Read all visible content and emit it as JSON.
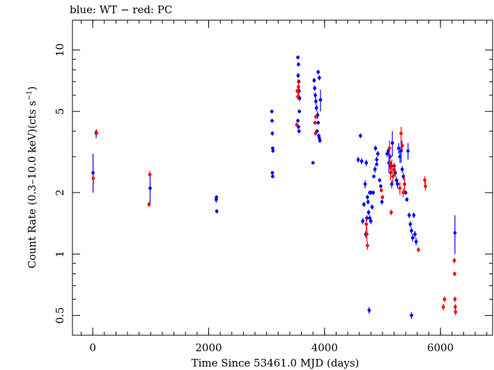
{
  "chart_data": {
    "type": "scatter",
    "title": "blue: WT − red: PC",
    "xlabel": "Time Since 53461.0 MJD (days)",
    "ylabel_main": "Count Rate (0.3–10.0 keV)(cts s",
    "ylabel_sup": "−1",
    "ylabel_end": ")",
    "x_ticks": [
      "0",
      "2000",
      "4000",
      "6000"
    ],
    "y_ticks": [
      "0.5",
      "1",
      "2",
      "5",
      "10"
    ],
    "xlim": [
      -350,
      6900
    ],
    "ylim": [
      0.4,
      14.0
    ],
    "yscale": "log",
    "grid": false,
    "series": [
      {
        "name": "WT",
        "color": "#0000ff",
        "points": [
          [
            5,
            2.5,
            2.0,
            3.1
          ],
          [
            60,
            3.9,
            3.7,
            4.1
          ],
          [
            990,
            2.1,
            1.75,
            2.5
          ],
          [
            2130,
            1.85,
            1.78,
            1.92
          ],
          [
            2140,
            1.62,
            1.58,
            1.66
          ],
          [
            2135,
            1.9,
            1.86,
            1.94
          ],
          [
            3090,
            5.0,
            4.9,
            5.1
          ],
          [
            3095,
            4.5,
            4.4,
            4.6
          ],
          [
            3100,
            3.9,
            3.8,
            4.0
          ],
          [
            3105,
            3.3,
            3.25,
            3.35
          ],
          [
            3110,
            3.2,
            3.15,
            3.25
          ],
          [
            3100,
            2.5,
            2.45,
            2.55
          ],
          [
            3105,
            2.4,
            2.35,
            2.45
          ],
          [
            3540,
            9.2,
            9.0,
            9.4
          ],
          [
            3550,
            8.5,
            8.3,
            8.7
          ],
          [
            3545,
            7.5,
            7.3,
            7.7
          ],
          [
            3555,
            7.0,
            6.8,
            7.2
          ],
          [
            3560,
            6.3,
            6.1,
            6.5
          ],
          [
            3570,
            5.8,
            5.6,
            6.0
          ],
          [
            3565,
            5.0,
            4.9,
            5.1
          ],
          [
            3540,
            4.5,
            4.4,
            4.6
          ],
          [
            3550,
            4.2,
            4.1,
            4.3
          ],
          [
            3560,
            4.0,
            3.9,
            4.1
          ],
          [
            3820,
            7.1,
            6.9,
            7.3
          ],
          [
            3830,
            6.5,
            6.3,
            6.7
          ],
          [
            3840,
            6.0,
            5.8,
            6.2
          ],
          [
            3850,
            5.6,
            5.4,
            5.8
          ],
          [
            3860,
            5.2,
            5.0,
            5.4
          ],
          [
            3880,
            4.8,
            4.6,
            5.0
          ],
          [
            3890,
            4.4,
            4.3,
            4.5
          ],
          [
            3870,
            4.0,
            3.9,
            4.1
          ],
          [
            3900,
            3.8,
            3.7,
            3.9
          ],
          [
            3910,
            3.7,
            3.6,
            3.8
          ],
          [
            3920,
            3.6,
            3.5,
            3.7
          ],
          [
            3930,
            5.7,
            5.0,
            6.4
          ],
          [
            3890,
            7.8,
            7.6,
            8.0
          ],
          [
            3910,
            7.3,
            7.1,
            7.5
          ],
          [
            3800,
            2.8,
            2.75,
            2.85
          ],
          [
            4580,
            2.9,
            2.8,
            3.0
          ],
          [
            4620,
            3.8,
            3.7,
            3.9
          ],
          [
            4640,
            2.85,
            2.75,
            2.95
          ],
          [
            4660,
            1.45,
            1.4,
            1.5
          ],
          [
            4680,
            1.75,
            1.7,
            1.8
          ],
          [
            4700,
            2.2,
            2.1,
            2.3
          ],
          [
            4720,
            2.8,
            2.7,
            2.9
          ],
          [
            4740,
            1.9,
            1.85,
            1.95
          ],
          [
            4760,
            1.6,
            1.55,
            1.65
          ],
          [
            4780,
            1.5,
            1.45,
            1.55
          ],
          [
            4800,
            1.45,
            1.4,
            1.5
          ],
          [
            4820,
            1.7,
            1.65,
            1.75
          ],
          [
            4840,
            2.0,
            1.95,
            2.05
          ],
          [
            4710,
            1.25,
            1.2,
            1.3
          ],
          [
            4730,
            1.5,
            1.45,
            1.55
          ],
          [
            4750,
            1.8,
            1.75,
            1.85
          ],
          [
            4780,
            2.0,
            1.95,
            2.05
          ],
          [
            4800,
            2.0,
            1.95,
            2.05
          ],
          [
            4850,
            2.4,
            2.35,
            2.45
          ],
          [
            4870,
            2.6,
            2.5,
            2.7
          ],
          [
            4900,
            2.75,
            2.7,
            2.8
          ],
          [
            4920,
            3.1,
            3.0,
            3.2
          ],
          [
            4950,
            2.3,
            2.25,
            2.35
          ],
          [
            4970,
            2.15,
            2.1,
            2.2
          ],
          [
            4990,
            1.8,
            1.75,
            1.85
          ],
          [
            4770,
            0.53,
            0.51,
            0.55
          ],
          [
            4880,
            3.3,
            3.2,
            3.4
          ],
          [
            4900,
            2.9,
            2.8,
            3.0
          ],
          [
            5080,
            3.1,
            3.0,
            3.2
          ],
          [
            5100,
            3.2,
            3.1,
            3.3
          ],
          [
            5110,
            2.8,
            2.5,
            3.1
          ],
          [
            5130,
            3.0,
            2.9,
            3.1
          ],
          [
            5140,
            2.7,
            2.6,
            2.8
          ],
          [
            5160,
            2.2,
            2.1,
            2.3
          ],
          [
            5170,
            3.5,
            3.0,
            4.0
          ],
          [
            5200,
            2.7,
            2.6,
            2.8
          ],
          [
            5220,
            2.5,
            2.4,
            2.6
          ],
          [
            5240,
            2.3,
            2.2,
            2.4
          ],
          [
            5260,
            2.2,
            2.1,
            2.3
          ],
          [
            5280,
            3.3,
            3.1,
            3.5
          ],
          [
            5300,
            3.0,
            2.8,
            3.2
          ],
          [
            5320,
            3.2,
            2.8,
            3.6
          ],
          [
            5340,
            2.6,
            2.5,
            2.7
          ],
          [
            5360,
            2.4,
            2.3,
            2.5
          ],
          [
            5380,
            2.2,
            2.1,
            2.3
          ],
          [
            5400,
            2.0,
            1.95,
            2.05
          ],
          [
            5420,
            1.85,
            1.8,
            1.9
          ],
          [
            5440,
            3.2,
            2.9,
            3.5
          ],
          [
            5460,
            1.55,
            1.5,
            1.6
          ],
          [
            5480,
            1.4,
            1.35,
            1.45
          ],
          [
            5500,
            1.3,
            1.25,
            1.35
          ],
          [
            5520,
            1.2,
            1.15,
            1.25
          ],
          [
            5540,
            1.55,
            1.5,
            1.6
          ],
          [
            5500,
            0.5,
            0.48,
            0.52
          ],
          [
            5560,
            1.25,
            1.2,
            1.3
          ],
          [
            5580,
            1.15,
            1.1,
            1.2
          ],
          [
            6250,
            1.27,
            1.0,
            1.55
          ]
        ]
      },
      {
        "name": "PC",
        "color": "#ff0000",
        "points": [
          [
            10,
            2.35,
            2.2,
            2.5
          ],
          [
            60,
            3.95,
            3.8,
            4.1
          ],
          [
            985,
            2.45,
            2.35,
            2.55
          ],
          [
            970,
            1.75,
            1.7,
            1.8
          ],
          [
            3530,
            6.3,
            6.1,
            6.5
          ],
          [
            3540,
            5.9,
            5.7,
            6.1
          ],
          [
            3520,
            4.3,
            4.2,
            4.4
          ],
          [
            3550,
            6.6,
            6.0,
            7.2
          ],
          [
            3835,
            4.4,
            4.3,
            4.5
          ],
          [
            3845,
            3.9,
            3.8,
            4.0
          ],
          [
            3850,
            4.7,
            4.6,
            4.8
          ],
          [
            4720,
            1.4,
            1.3,
            1.5
          ],
          [
            4730,
            1.25,
            1.15,
            1.35
          ],
          [
            4740,
            1.1,
            1.05,
            1.15
          ],
          [
            4980,
            2.05,
            2.0,
            2.1
          ],
          [
            5000,
            1.9,
            1.85,
            1.95
          ],
          [
            5120,
            3.3,
            3.0,
            3.6
          ],
          [
            5130,
            2.8,
            2.6,
            3.0
          ],
          [
            5140,
            2.5,
            2.3,
            2.7
          ],
          [
            5160,
            2.7,
            2.5,
            2.9
          ],
          [
            5180,
            2.4,
            2.2,
            2.6
          ],
          [
            5150,
            1.6,
            1.55,
            1.65
          ],
          [
            5200,
            2.6,
            2.4,
            2.8
          ],
          [
            5320,
            3.9,
            3.6,
            4.2
          ],
          [
            5340,
            3.4,
            3.2,
            3.6
          ],
          [
            5300,
            2.1,
            1.95,
            2.25
          ],
          [
            5360,
            2.0,
            1.9,
            2.1
          ],
          [
            5380,
            2.2,
            2.0,
            2.4
          ],
          [
            5620,
            1.05,
            1.02,
            1.08
          ],
          [
            5730,
            2.3,
            2.2,
            2.4
          ],
          [
            5740,
            2.15,
            2.05,
            2.25
          ],
          [
            6050,
            0.55,
            0.53,
            0.57
          ],
          [
            6070,
            0.6,
            0.58,
            0.62
          ],
          [
            6240,
            0.93,
            0.9,
            0.96
          ],
          [
            6245,
            0.8,
            0.78,
            0.82
          ],
          [
            6250,
            0.6,
            0.58,
            0.62
          ],
          [
            6255,
            0.55,
            0.53,
            0.57
          ],
          [
            6260,
            0.52,
            0.5,
            0.54
          ]
        ]
      }
    ]
  }
}
